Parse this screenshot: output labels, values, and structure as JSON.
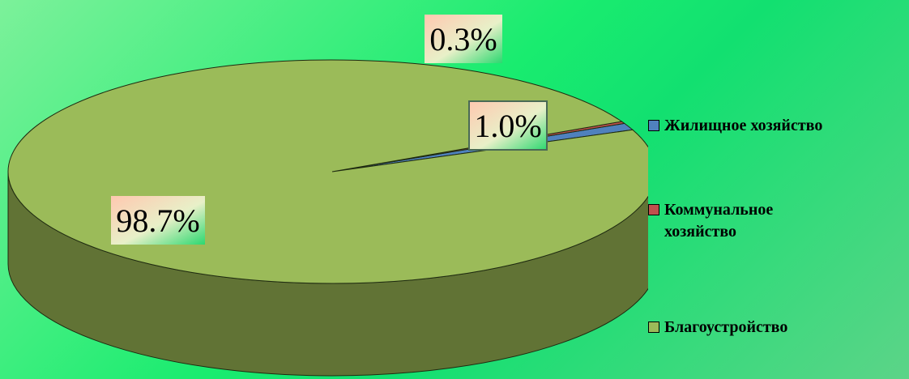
{
  "chart_data": {
    "type": "pie",
    "categories": [
      "Жилищное хозяйство",
      "Коммунальное хозяйство",
      "Благоустройство"
    ],
    "values": [
      1.0,
      0.3,
      98.7
    ],
    "data_labels": [
      "1.0%",
      "0.3%",
      "98.7%"
    ],
    "colors": [
      "#4f81bd",
      "#c0504d",
      "#9bbb59"
    ],
    "side_color": "#617335",
    "legend_position": "right",
    "style": "3d"
  }
}
